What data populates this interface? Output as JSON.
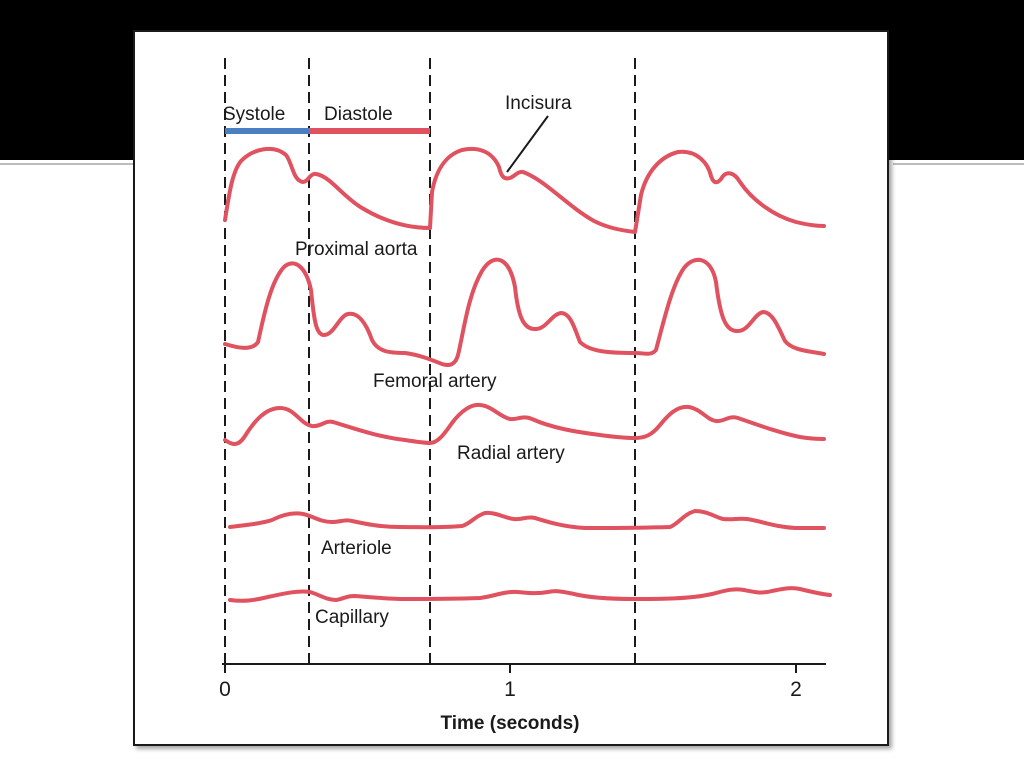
{
  "colors": {
    "waveform": "#e0525f",
    "systole_bar": "#4a7fc1",
    "diastole_bar": "#e0525f",
    "top_band": "#000000",
    "panel_border": "#1a1a1a"
  },
  "diagram": {
    "phase_labels": {
      "systole": "Systole",
      "diastole": "Diastole"
    },
    "annotation": "Incisura",
    "waveforms": [
      {
        "id": "proximal-aorta",
        "label": "Proximal aorta"
      },
      {
        "id": "femoral-artery",
        "label": "Femoral artery"
      },
      {
        "id": "radial-artery",
        "label": "Radial artery"
      },
      {
        "id": "arteriole",
        "label": "Arteriole"
      },
      {
        "id": "capillary",
        "label": "Capillary"
      }
    ],
    "axis": {
      "title": "Time (seconds)",
      "ticks": [
        "0",
        "1",
        "2"
      ]
    },
    "cycle_markers_seconds": [
      0,
      0.3,
      0.72,
      1.44
    ]
  }
}
